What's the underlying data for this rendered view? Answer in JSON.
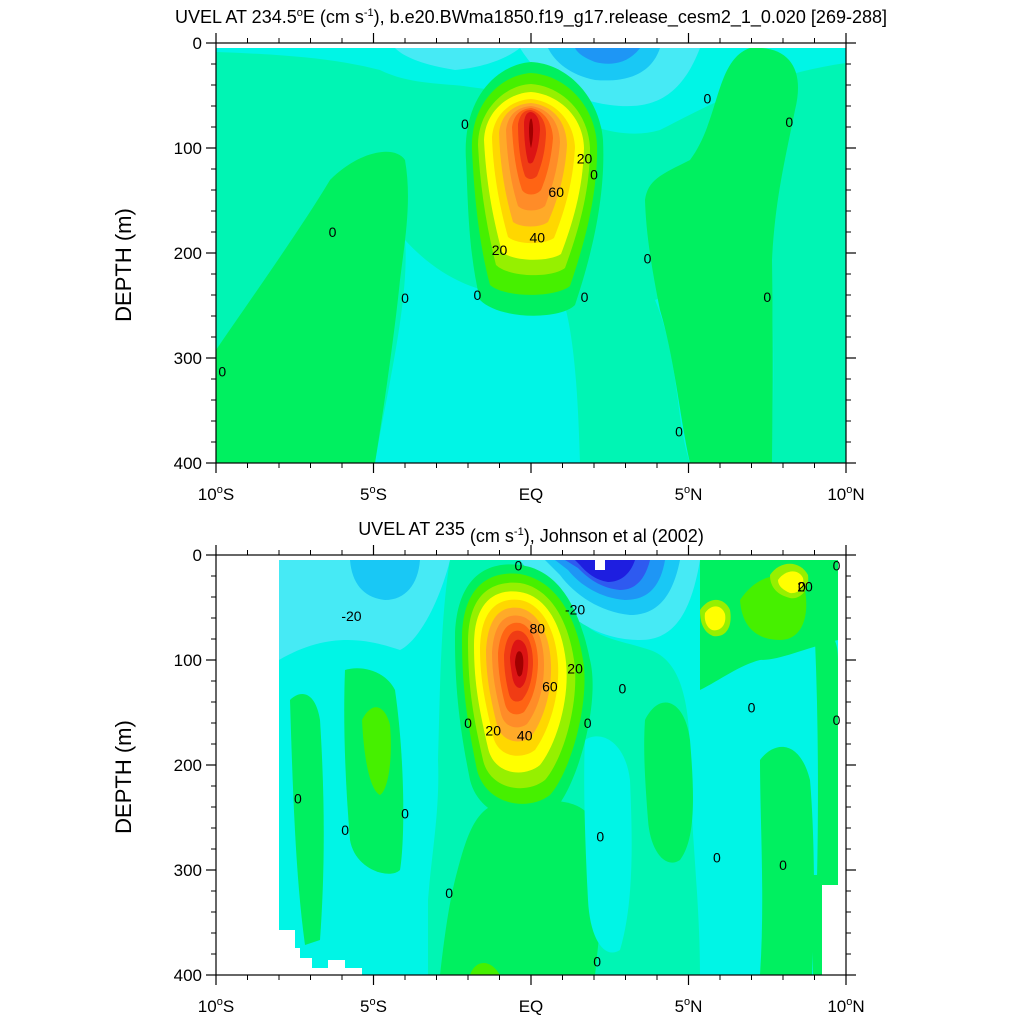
{
  "figure": {
    "palette": [
      "#1e1ee0",
      "#2e5af0",
      "#1e96f5",
      "#19c8f5",
      "#46eaf5",
      "#00f5e6",
      "#00fab4",
      "#00f060",
      "#46f000",
      "#96f000",
      "#ffff00",
      "#ffd700",
      "#ffaa28",
      "#ff8c28",
      "#ff6414",
      "#f03c14",
      "#dc1414",
      "#a00000"
    ]
  },
  "chart_data": [
    {
      "type": "contour",
      "title": "UVEL AT 234.5°E (cm s-1), b.e20.BWma1850.f19_g17.release_cesm2_1_0.020 [269-288]",
      "title_parts": {
        "a": "UVEL AT 234.5",
        "deg": "o",
        "b": "E (cm s",
        "sup": "-1",
        "c": "), b.e20.BWma1850.f19_g17.release_cesm2_1_0.020 [269-288]"
      },
      "xlabel": "",
      "ylabel": "DEPTH (m)",
      "xlim": [
        -10,
        10
      ],
      "ylim": [
        400,
        0
      ],
      "x_ticks": [
        {
          "value": -10,
          "label": "10",
          "deg": "o",
          "suffix": "S"
        },
        {
          "value": -5,
          "label": "5",
          "deg": "o",
          "suffix": "S"
        },
        {
          "value": 0,
          "label": "EQ",
          "deg": "",
          "suffix": ""
        },
        {
          "value": 5,
          "label": "5",
          "deg": "o",
          "suffix": "N"
        },
        {
          "value": 10,
          "label": "10",
          "deg": "o",
          "suffix": "N"
        }
      ],
      "y_ticks": [
        0,
        100,
        200,
        300,
        400
      ],
      "core": {
        "lat": 0,
        "depth": 115,
        "max": 85
      },
      "contour_labels": [
        {
          "text": "0",
          "lat": -9.8,
          "depth": 313
        },
        {
          "text": "0",
          "lat": -6.3,
          "depth": 180
        },
        {
          "text": "0",
          "lat": -4.0,
          "depth": 243
        },
        {
          "text": "0",
          "lat": -2.1,
          "depth": 77
        },
        {
          "text": "0",
          "lat": -1.7,
          "depth": 240
        },
        {
          "text": "0",
          "lat": 2.0,
          "depth": 125
        },
        {
          "text": "0",
          "lat": 1.7,
          "depth": 242
        },
        {
          "text": "0",
          "lat": 3.7,
          "depth": 205
        },
        {
          "text": "0",
          "lat": 5.6,
          "depth": 53
        },
        {
          "text": "0",
          "lat": 4.7,
          "depth": 370
        },
        {
          "text": "0",
          "lat": 7.5,
          "depth": 242
        },
        {
          "text": "0",
          "lat": 8.2,
          "depth": 75
        },
        {
          "text": "20",
          "lat": 1.7,
          "depth": 110
        },
        {
          "text": "60",
          "lat": 0.8,
          "depth": 142
        },
        {
          "text": "40",
          "lat": 0.2,
          "depth": 185
        },
        {
          "text": "20",
          "lat": -1.0,
          "depth": 197
        }
      ]
    },
    {
      "type": "contour",
      "title": "UVEL AT 235 (cm s-1), Johnson et al (2002)",
      "title_parts": {
        "a": "UVEL AT 235",
        "deg": "",
        "b": " (cm s",
        "sup": "-1",
        "c": "), Johnson et al (2002)"
      },
      "xlabel": "",
      "ylabel": "DEPTH (m)",
      "xlim": [
        -10,
        10
      ],
      "ylim": [
        400,
        0
      ],
      "x_ticks": [
        {
          "value": -10,
          "label": "10",
          "deg": "o",
          "suffix": "S"
        },
        {
          "value": -5,
          "label": "5",
          "deg": "o",
          "suffix": "S"
        },
        {
          "value": 0,
          "label": "EQ",
          "deg": "",
          "suffix": ""
        },
        {
          "value": 5,
          "label": "5",
          "deg": "o",
          "suffix": "N"
        },
        {
          "value": 10,
          "label": "10",
          "deg": "o",
          "suffix": "N"
        }
      ],
      "y_ticks": [
        0,
        100,
        200,
        300,
        400
      ],
      "core": {
        "lat": -0.2,
        "depth": 88,
        "max": 90
      },
      "contour_labels": [
        {
          "text": "0",
          "lat": -0.4,
          "depth": 10
        },
        {
          "text": "-20",
          "lat": -5.7,
          "depth": 58
        },
        {
          "text": "-20",
          "lat": 1.4,
          "depth": 52
        },
        {
          "text": "80",
          "lat": 0.2,
          "depth": 70
        },
        {
          "text": "20",
          "lat": 1.4,
          "depth": 108
        },
        {
          "text": "60",
          "lat": 0.6,
          "depth": 125
        },
        {
          "text": "40",
          "lat": -0.2,
          "depth": 172
        },
        {
          "text": "20",
          "lat": -1.2,
          "depth": 167
        },
        {
          "text": "0",
          "lat": -2.0,
          "depth": 160
        },
        {
          "text": "0",
          "lat": 1.8,
          "depth": 160
        },
        {
          "text": "0",
          "lat": 2.9,
          "depth": 127
        },
        {
          "text": "0",
          "lat": -7.4,
          "depth": 232
        },
        {
          "text": "0",
          "lat": -5.9,
          "depth": 262
        },
        {
          "text": "0",
          "lat": -4.0,
          "depth": 246
        },
        {
          "text": "0",
          "lat": 2.2,
          "depth": 268
        },
        {
          "text": "0",
          "lat": -2.6,
          "depth": 322
        },
        {
          "text": "0",
          "lat": 2.1,
          "depth": 387
        },
        {
          "text": "0",
          "lat": 5.9,
          "depth": 288
        },
        {
          "text": "0",
          "lat": 7.0,
          "depth": 145
        },
        {
          "text": "0",
          "lat": 8.0,
          "depth": 295
        },
        {
          "text": "0",
          "lat": 8.6,
          "depth": 30
        },
        {
          "text": "0",
          "lat": 9.7,
          "depth": 157
        },
        {
          "text": "0",
          "lat": 9.7,
          "depth": 10
        },
        {
          "text": "20",
          "lat": 8.7,
          "depth": 30
        }
      ]
    }
  ]
}
